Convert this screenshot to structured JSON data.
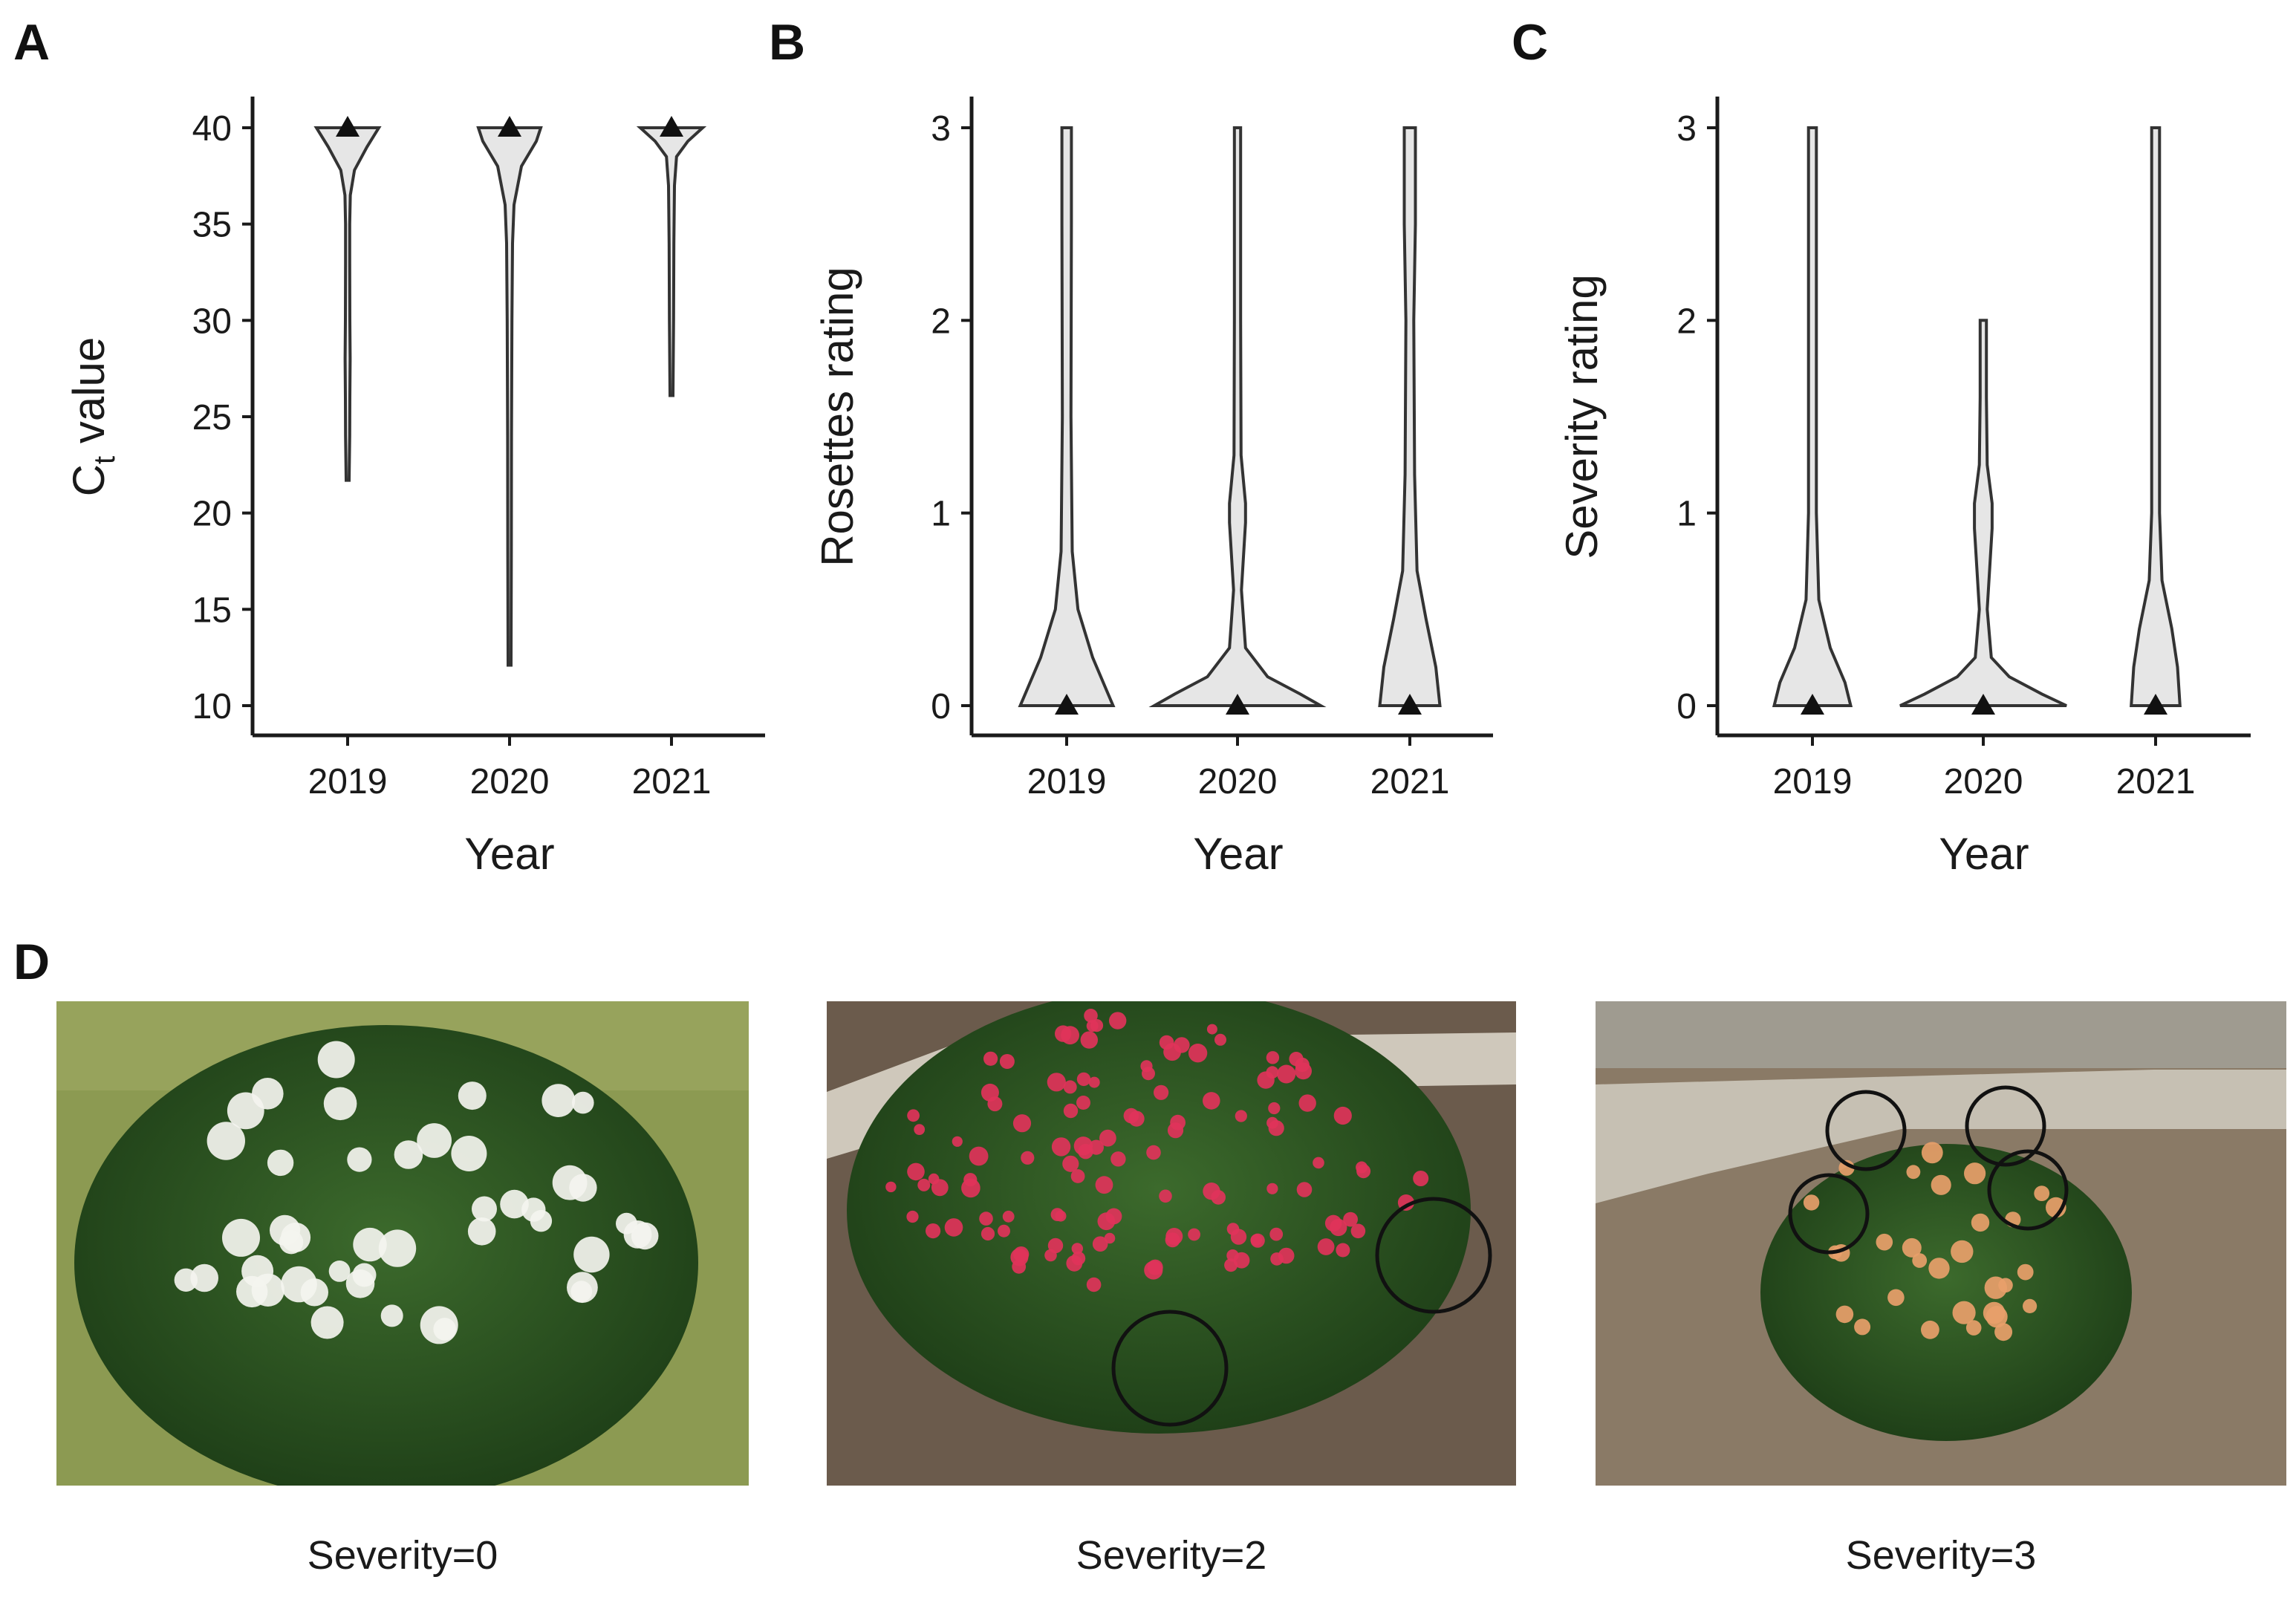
{
  "chart_data": [
    {
      "panel": "A",
      "type": "violin",
      "categories": [
        "2019",
        "2020",
        "2021"
      ],
      "xlabel": "Year",
      "ylabel": {
        "main": "C",
        "subscript": "t",
        "rest": " value"
      },
      "yticks": [
        "10",
        "15",
        "20",
        "25",
        "30",
        "35",
        "40"
      ],
      "ylim": [
        10,
        40
      ],
      "series": [
        {
          "name": "2019",
          "min": 21.7,
          "max": 40,
          "median": 40,
          "profile": [
            [
              21.7,
              0
            ],
            [
              24,
              0.02
            ],
            [
              26,
              0.025
            ],
            [
              28,
              0.035
            ],
            [
              30,
              0.025
            ],
            [
              33,
              0.02
            ],
            [
              35,
              0.02
            ],
            [
              36.5,
              0.04
            ],
            [
              37.8,
              0.18
            ],
            [
              39,
              0.6
            ],
            [
              40,
              1.0
            ]
          ]
        },
        {
          "name": "2020",
          "min": 12.1,
          "max": 40,
          "median": 40,
          "profile": [
            [
              12.1,
              0
            ],
            [
              18,
              0.01
            ],
            [
              24,
              0.015
            ],
            [
              30,
              0.03
            ],
            [
              34,
              0.05
            ],
            [
              36,
              0.1
            ],
            [
              38,
              0.35
            ],
            [
              39.3,
              0.85
            ],
            [
              40,
              1.0
            ]
          ]
        },
        {
          "name": "2021",
          "min": 26.1,
          "max": 40,
          "median": 40,
          "profile": [
            [
              26.1,
              0
            ],
            [
              30,
              0.02
            ],
            [
              34,
              0.03
            ],
            [
              37,
              0.05
            ],
            [
              38.5,
              0.12
            ],
            [
              39.3,
              0.5
            ],
            [
              40,
              1.0
            ]
          ]
        }
      ]
    },
    {
      "panel": "B",
      "type": "violin",
      "categories": [
        "2019",
        "2020",
        "2021"
      ],
      "xlabel": "Year",
      "ylabel": {
        "main": "Rosettes rating",
        "subscript": "",
        "rest": ""
      },
      "yticks": [
        "0",
        "1",
        "2",
        "3"
      ],
      "ylim": [
        0,
        3
      ],
      "series": [
        {
          "name": "2019",
          "min": 0,
          "max": 3,
          "median": 0,
          "profile": [
            [
              0,
              0.55
            ],
            [
              0.1,
              0.45
            ],
            [
              0.25,
              0.3
            ],
            [
              0.5,
              0.12
            ],
            [
              0.8,
              0.05
            ],
            [
              1.5,
              0.035
            ],
            [
              2.5,
              0.04
            ],
            [
              3,
              0.04
            ]
          ]
        },
        {
          "name": "2020",
          "min": 0,
          "max": 3,
          "median": 0,
          "profile": [
            [
              0,
              1.0
            ],
            [
              0.06,
              0.75
            ],
            [
              0.15,
              0.35
            ],
            [
              0.3,
              0.08
            ],
            [
              0.6,
              0.03
            ],
            [
              0.95,
              0.08
            ],
            [
              1.05,
              0.08
            ],
            [
              1.3,
              0.025
            ],
            [
              2,
              0.02
            ],
            [
              3,
              0.02
            ]
          ]
        },
        {
          "name": "2021",
          "min": 0,
          "max": 3,
          "median": 0,
          "profile": [
            [
              0,
              0.35
            ],
            [
              0.2,
              0.3
            ],
            [
              0.45,
              0.18
            ],
            [
              0.7,
              0.07
            ],
            [
              1.2,
              0.04
            ],
            [
              2,
              0.03
            ],
            [
              2.5,
              0.05
            ],
            [
              3,
              0.05
            ]
          ]
        }
      ]
    },
    {
      "panel": "C",
      "type": "violin",
      "categories": [
        "2019",
        "2020",
        "2021"
      ],
      "xlabel": "Year",
      "ylabel": {
        "main": "Severity rating",
        "subscript": "",
        "rest": ""
      },
      "yticks": [
        "0",
        "1",
        "2",
        "3"
      ],
      "ylim": [
        0,
        3
      ],
      "series": [
        {
          "name": "2019",
          "min": 0,
          "max": 3,
          "median": 0,
          "profile": [
            [
              0,
              0.45
            ],
            [
              0.12,
              0.38
            ],
            [
              0.3,
              0.2
            ],
            [
              0.55,
              0.06
            ],
            [
              1,
              0.03
            ],
            [
              2,
              0.03
            ],
            [
              3,
              0.03
            ]
          ]
        },
        {
          "name": "2020",
          "min": 0,
          "max": 2,
          "median": 0,
          "profile": [
            [
              0,
              1.0
            ],
            [
              0.06,
              0.7
            ],
            [
              0.15,
              0.3
            ],
            [
              0.25,
              0.08
            ],
            [
              0.5,
              0.03
            ],
            [
              0.92,
              0.09
            ],
            [
              1.05,
              0.09
            ],
            [
              1.25,
              0.03
            ],
            [
              1.6,
              0.02
            ],
            [
              2,
              0.02
            ]
          ]
        },
        {
          "name": "2021",
          "min": 0,
          "max": 3,
          "median": 0,
          "profile": [
            [
              0,
              0.28
            ],
            [
              0.2,
              0.25
            ],
            [
              0.4,
              0.18
            ],
            [
              0.65,
              0.06
            ],
            [
              1,
              0.03
            ],
            [
              2,
              0.03
            ],
            [
              3,
              0.03
            ]
          ]
        }
      ]
    }
  ],
  "panels": {
    "a_label": "A",
    "b_label": "B",
    "c_label": "C",
    "d_label": "D"
  },
  "photos": [
    {
      "caption": "Severity=0",
      "flower_color": "#f4f4ef",
      "foliage": "#2f5a24",
      "ground": "#7a8a45"
    },
    {
      "caption": "Severity=2",
      "flower_color": "#e0335a",
      "foliage": "#3a5e2c",
      "ground": "#6b5a4a"
    },
    {
      "caption": "Severity=3",
      "flower_color": "#e8a06a",
      "foliage": "#4a5a2a",
      "ground": "#8a7a66"
    }
  ],
  "colors": {
    "violin_fill": "#e6e6e6",
    "violin_stroke": "#333333",
    "marker": "#111111"
  }
}
